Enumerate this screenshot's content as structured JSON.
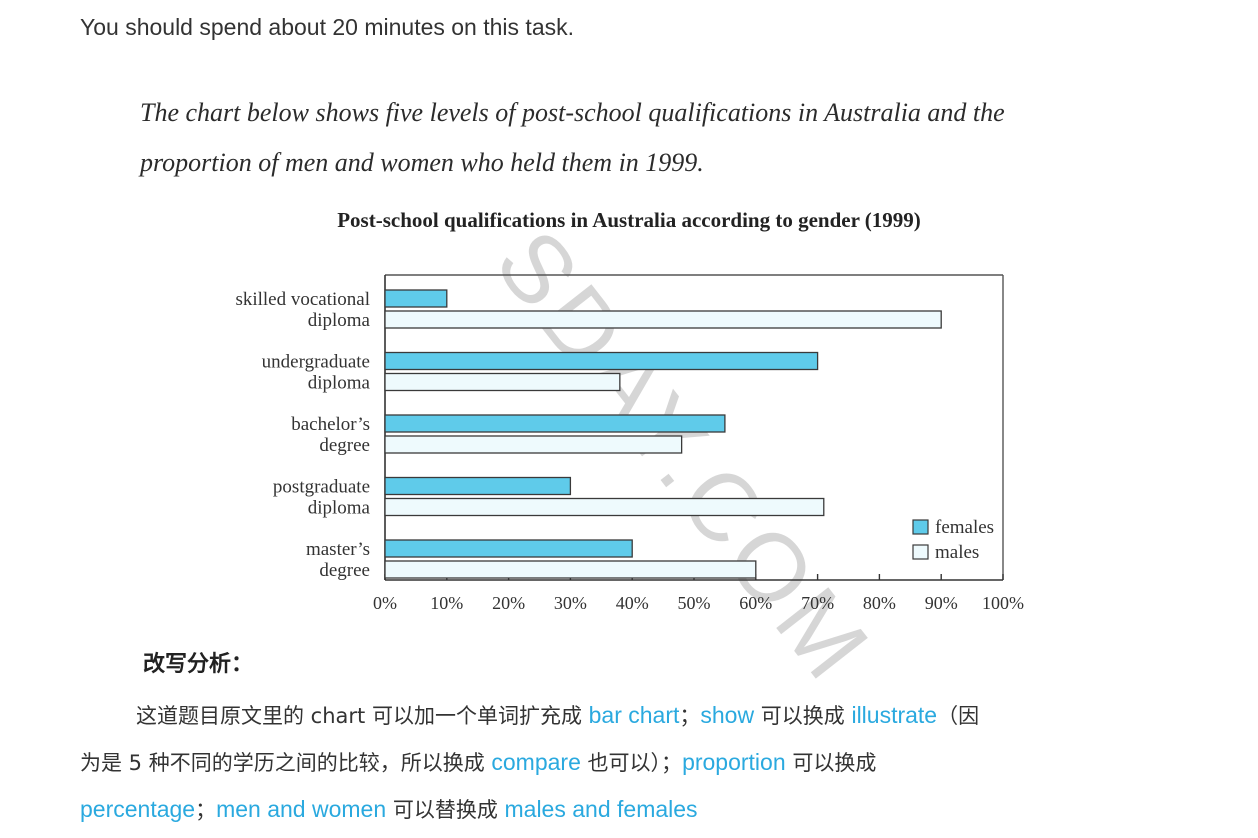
{
  "instruction": "You should spend about 20 minutes on this task.",
  "prompt_line1": "The chart below shows five levels of post-school qualifications in Australia and the",
  "prompt_line2": "proportion of men and women who held them in 1999.",
  "chart_data": {
    "type": "bar",
    "orientation": "horizontal",
    "title": "Post-school qualifications in Australia according to gender (1999)",
    "categories": [
      [
        "skilled vocational",
        "diploma"
      ],
      [
        "undergraduate",
        "diploma"
      ],
      [
        "bachelor’s",
        "degree"
      ],
      [
        "postgraduate",
        "diploma"
      ],
      [
        "master’s",
        "degree"
      ]
    ],
    "series": [
      {
        "name": "females",
        "values": [
          10,
          70,
          55,
          30,
          40
        ],
        "color": "#5fcbea"
      },
      {
        "name": "males",
        "values": [
          90,
          38,
          48,
          71,
          60
        ],
        "color": "#eefafd"
      }
    ],
    "xticks": [
      "0%",
      "10%",
      "20%",
      "30%",
      "40%",
      "50%",
      "60%",
      "70%",
      "80%",
      "90%",
      "100%"
    ],
    "xlim": [
      0,
      100
    ],
    "legend_position": "bottom-right",
    "grid": false
  },
  "watermark": "SDAY.COM",
  "analysis": {
    "heading": "改写分析：",
    "line1": [
      {
        "t": "这道题目原文里的 chart 可以加一个单词扩充成 ",
        "hl": false
      },
      {
        "t": "bar chart",
        "hl": true
      },
      {
        "t": "；",
        "hl": false
      },
      {
        "t": "show",
        "hl": true
      },
      {
        "t": " 可以换成 ",
        "hl": false
      },
      {
        "t": "illustrate",
        "hl": true
      },
      {
        "t": "（因",
        "hl": false
      }
    ],
    "line2": [
      {
        "t": "为是 5 种不同的学历之间的比较，所以换成 ",
        "hl": false
      },
      {
        "t": "compare",
        "hl": true
      },
      {
        "t": " 也可以）；",
        "hl": false
      },
      {
        "t": "proportion",
        "hl": true
      },
      {
        "t": " 可以换成",
        "hl": false
      }
    ],
    "line3": [
      {
        "t": "percentage",
        "hl": true
      },
      {
        "t": "；",
        "hl": false
      },
      {
        "t": "men and women",
        "hl": true
      },
      {
        "t": " 可以替换成 ",
        "hl": false
      },
      {
        "t": "males and females",
        "hl": true
      }
    ]
  }
}
